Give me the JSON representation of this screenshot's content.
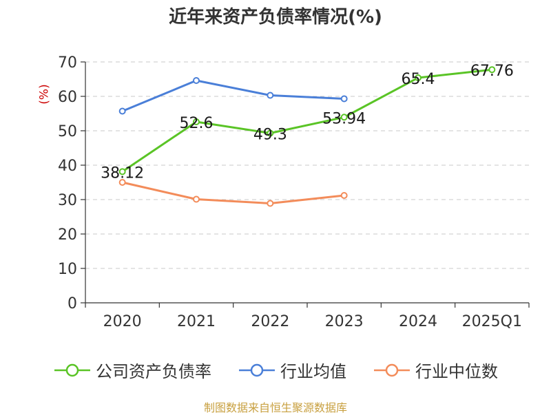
{
  "title": "近年来资产负债率情况(%)",
  "source": "制图数据来自恒生聚源数据库",
  "colors": {
    "company": "#5ac426",
    "industry_avg": "#4a7fd8",
    "industry_median": "#f38c5a"
  },
  "chart_data": {
    "type": "line",
    "title": "近年来资产负债率情况(%)",
    "ylabel": "(%)",
    "xlabel": "",
    "categories": [
      "2020",
      "2021",
      "2022",
      "2023",
      "2024",
      "2025Q1"
    ],
    "ylim": [
      0,
      70
    ],
    "yticks": [
      0,
      10,
      20,
      30,
      40,
      50,
      60,
      70
    ],
    "grid": true,
    "legend_position": "bottom",
    "series": [
      {
        "name": "公司资产负债率",
        "color": "#5ac426",
        "values": [
          38.12,
          52.6,
          49.3,
          53.94,
          65.4,
          67.76
        ],
        "labels": [
          "38.12",
          "52.6",
          "49.3",
          "53.94",
          "65.4",
          "67.76"
        ]
      },
      {
        "name": "行业均值",
        "color": "#4a7fd8",
        "values": [
          55.7,
          64.6,
          60.3,
          59.3,
          null,
          null
        ]
      },
      {
        "name": "行业中位数",
        "color": "#f38c5a",
        "values": [
          35.0,
          30.1,
          28.9,
          31.2,
          null,
          null
        ]
      }
    ]
  }
}
